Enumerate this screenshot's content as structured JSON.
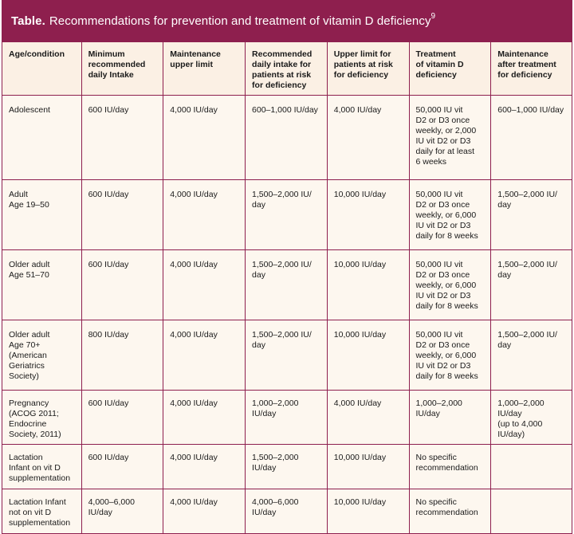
{
  "title": {
    "label": "Table.",
    "text": "Recommendations for prevention and treatment of vitamin D deficiency",
    "superscript": "9"
  },
  "table": {
    "headers": [
      "Age/condition",
      "Minimum\nrecommended\ndaily Intake",
      "Maintenance\nupper limit",
      "Recommended\ndaily intake for\npatients at risk\nfor deficiency",
      "Upper limit for\npatients at risk\nfor deficiency",
      "Treatment\nof vitamin D\ndeficiency",
      "Maintenance\nafter treatment\nfor deficiency"
    ],
    "rows": [
      [
        "Adolescent",
        "600 IU/day",
        "4,000 IU/day",
        "600–1,000 IU/day",
        "4,000 IU/day",
        "50,000 IU vit\nD2 or D3 once\nweekly, or 2,000\nIU vit D2 or D3\ndaily for at least\n6 weeks",
        "600–1,000 IU/day"
      ],
      [
        "Adult\nAge 19–50",
        "600 IU/day",
        "4,000 IU/day",
        "1,500–2,000 IU/\nday",
        "10,000 IU/day",
        "50,000 IU vit\nD2 or D3 once\nweekly, or 6,000\nIU vit D2 or D3\ndaily for 8 weeks",
        "1,500–2,000 IU/\nday"
      ],
      [
        "Older adult\nAge 51–70",
        "600 IU/day",
        "4,000 IU/day",
        "1,500–2,000 IU/\nday",
        "10,000 IU/day",
        "50,000 IU vit\nD2 or D3 once\nweekly, or 6,000\nIU vit D2 or D3\ndaily for 8 weeks",
        "1,500–2,000 IU/\nday"
      ],
      [
        "Older adult\nAge 70+\n(American\nGeriatrics\nSociety)",
        "800 IU/day",
        "4,000 IU/day",
        "1,500–2,000 IU/\nday",
        "10,000 IU/day",
        "50,000 IU vit\nD2 or D3 once\nweekly, or 6,000\nIU vit D2 or D3\ndaily for 8 weeks",
        "1,500–2,000 IU/\nday"
      ],
      [
        "Pregnancy\n(ACOG 2011;\nEndocrine\nSociety, 2011)",
        "600 IU/day",
        "4,000 IU/day",
        "1,000–2,000 IU/day",
        "4,000 IU/day",
        "1,000–2,000 IU/day",
        "1,000–2,000 IU/day\n(up to 4,000 IU/day)"
      ],
      [
        "Lactation\nInfant on vit D\nsupplementation",
        "600 IU/day",
        "4,000 IU/day",
        "1,500–2,000 IU/day",
        "10,000 IU/day",
        "No specific\nrecommendation",
        ""
      ],
      [
        "Lactation Infant\nnot on vit D\nsupplementation",
        "4,000–6,000 IU/day",
        "4,000 IU/day",
        "4,000–6,000 IU/day",
        "10,000 IU/day",
        "No specific\nrecommendation",
        ""
      ]
    ]
  },
  "colors": {
    "accent": "#8e1f4e",
    "header_bg": "#fbf0e4",
    "cell_bg": "#fdf7ef"
  }
}
